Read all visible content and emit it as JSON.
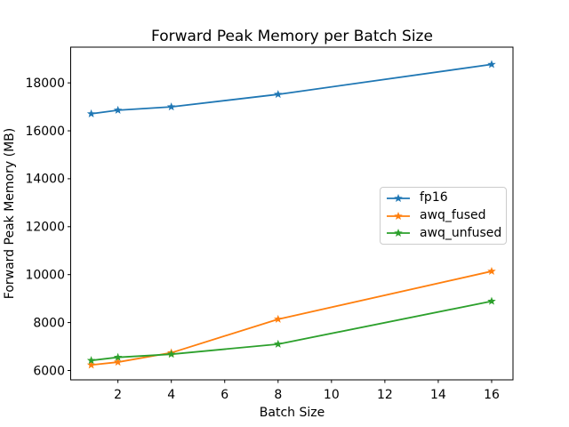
{
  "chart_data": {
    "type": "line",
    "title": "Forward Peak Memory per Batch Size",
    "xlabel": "Batch Size",
    "ylabel": "Forward Peak Memory (MB)",
    "x": [
      1,
      2,
      4,
      8,
      16
    ],
    "series": [
      {
        "name": "fp16",
        "color": "#1f77b4",
        "values": [
          16710,
          16860,
          17000,
          17520,
          18770
        ]
      },
      {
        "name": "awq_fused",
        "color": "#ff7f0e",
        "values": [
          6230,
          6350,
          6740,
          8140,
          10140
        ]
      },
      {
        "name": "awq_unfused",
        "color": "#2ca02c",
        "values": [
          6420,
          6550,
          6680,
          7100,
          8890
        ]
      }
    ],
    "xticks": [
      2,
      4,
      6,
      8,
      10,
      12,
      14,
      16
    ],
    "yticks": [
      6000,
      8000,
      10000,
      12000,
      14000,
      16000,
      18000
    ],
    "xlim": [
      0.23,
      16.8
    ],
    "ylim": [
      5610,
      19490
    ],
    "marker": "star",
    "grid": false,
    "legend_position": "center right",
    "background_color": "#ffffff",
    "axis_color": "#000000"
  }
}
